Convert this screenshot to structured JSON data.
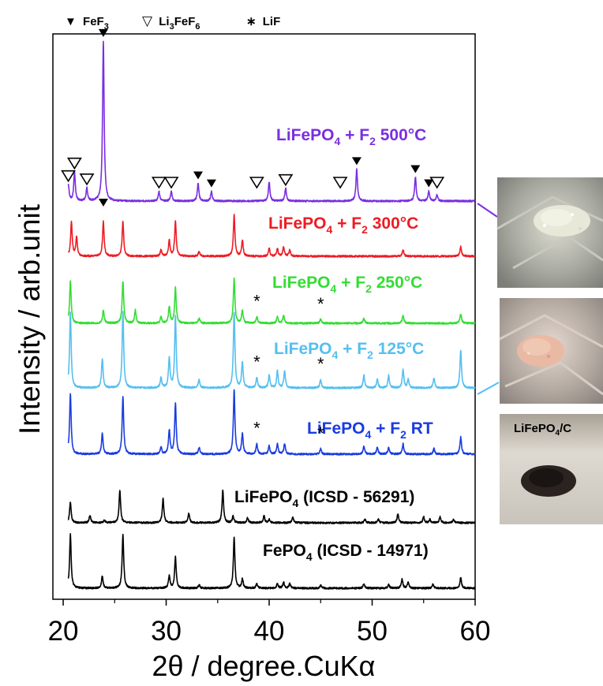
{
  "chart_data": {
    "type": "line",
    "xlabel": "2θ / degree.CuKα",
    "ylabel": "Intensity / arb.unit",
    "xlim": [
      19,
      60
    ],
    "x_ticks": [
      "20",
      "30",
      "40",
      "50",
      "60"
    ],
    "legend": [
      {
        "symbol": "▼",
        "base": "FeF",
        "sub": "3",
        "rest": ""
      },
      {
        "symbol": "▽",
        "base": "Li",
        "sub": "3",
        "rest": "FeF",
        "sub2": "6"
      },
      {
        "symbol": "∗",
        "base": "LiF",
        "sub": "",
        "rest": ""
      }
    ],
    "series": [
      {
        "id": "s500",
        "pre": "LiFePO",
        "sub": "4",
        "post": " + F",
        "sub2": "2",
        "tail": " 500°C",
        "color": "#7a2fe0",
        "peaks": [
          [
            20.5,
            0.1
          ],
          [
            21.1,
            0.18
          ],
          [
            22.3,
            0.08
          ],
          [
            23.9,
            1.0
          ],
          [
            29.3,
            0.06
          ],
          [
            30.5,
            0.06
          ],
          [
            33.1,
            0.11
          ],
          [
            34.4,
            0.06
          ],
          [
            40.0,
            0.12
          ],
          [
            41.6,
            0.08
          ],
          [
            48.5,
            0.2
          ],
          [
            54.2,
            0.15
          ],
          [
            55.5,
            0.06
          ],
          [
            56.3,
            0.04
          ]
        ]
      },
      {
        "id": "s300",
        "pre": "LiFePO",
        "sub": "4",
        "post": " + F",
        "sub2": "2",
        "tail": " 300°C",
        "color": "#ee1c24",
        "peaks": [
          [
            20.8,
            0.55
          ],
          [
            21.3,
            0.3
          ],
          [
            23.9,
            0.55
          ],
          [
            25.8,
            0.55
          ],
          [
            29.5,
            0.1
          ],
          [
            30.3,
            0.25
          ],
          [
            30.9,
            0.55
          ],
          [
            33.2,
            0.08
          ],
          [
            36.6,
            0.65
          ],
          [
            37.4,
            0.25
          ],
          [
            40.0,
            0.12
          ],
          [
            40.8,
            0.12
          ],
          [
            41.4,
            0.15
          ],
          [
            42.0,
            0.1
          ],
          [
            53.0,
            0.1
          ],
          [
            58.6,
            0.15
          ]
        ]
      },
      {
        "id": "s250",
        "pre": "LiFePO",
        "sub": "4",
        "post": " + F",
        "sub2": "2",
        "tail": " 250°C",
        "color": "#33dd33",
        "peaks": [
          [
            20.7,
            0.65
          ],
          [
            23.9,
            0.2
          ],
          [
            25.8,
            0.65
          ],
          [
            27.0,
            0.2
          ],
          [
            29.5,
            0.1
          ],
          [
            30.3,
            0.25
          ],
          [
            30.9,
            0.55
          ],
          [
            33.2,
            0.08
          ],
          [
            36.6,
            0.7
          ],
          [
            37.4,
            0.2
          ],
          [
            38.8,
            0.1
          ],
          [
            40.8,
            0.1
          ],
          [
            41.4,
            0.12
          ],
          [
            45.0,
            0.06
          ],
          [
            49.2,
            0.08
          ],
          [
            53.0,
            0.12
          ],
          [
            58.6,
            0.15
          ]
        ]
      },
      {
        "id": "s125",
        "pre": "LiFePO",
        "sub": "4",
        "post": " + F",
        "sub2": "2",
        "tail": " 125°C",
        "color": "#55bff0",
        "peaks": [
          [
            20.7,
            0.9
          ],
          [
            23.8,
            0.35
          ],
          [
            25.8,
            0.9
          ],
          [
            29.5,
            0.12
          ],
          [
            30.3,
            0.35
          ],
          [
            30.9,
            0.85
          ],
          [
            33.2,
            0.1
          ],
          [
            36.6,
            0.9
          ],
          [
            37.4,
            0.3
          ],
          [
            38.8,
            0.12
          ],
          [
            40.0,
            0.15
          ],
          [
            40.8,
            0.2
          ],
          [
            41.5,
            0.2
          ],
          [
            45.0,
            0.1
          ],
          [
            49.2,
            0.15
          ],
          [
            50.5,
            0.1
          ],
          [
            51.6,
            0.15
          ],
          [
            53.0,
            0.22
          ],
          [
            53.5,
            0.1
          ],
          [
            56.0,
            0.12
          ],
          [
            58.6,
            0.45
          ]
        ]
      },
      {
        "id": "sRT",
        "pre": "LiFePO",
        "sub": "4",
        "post": " + F",
        "sub2": "2",
        "tail": " RT",
        "color": "#1a3ce0",
        "peaks": [
          [
            20.7,
            0.9
          ],
          [
            23.8,
            0.3
          ],
          [
            25.8,
            0.85
          ],
          [
            29.5,
            0.1
          ],
          [
            30.3,
            0.35
          ],
          [
            30.9,
            0.75
          ],
          [
            33.2,
            0.1
          ],
          [
            36.6,
            0.95
          ],
          [
            37.4,
            0.3
          ],
          [
            38.8,
            0.15
          ],
          [
            40.0,
            0.12
          ],
          [
            40.8,
            0.15
          ],
          [
            41.5,
            0.15
          ],
          [
            45.0,
            0.08
          ],
          [
            49.2,
            0.12
          ],
          [
            50.5,
            0.1
          ],
          [
            51.6,
            0.1
          ],
          [
            53.0,
            0.15
          ],
          [
            56.0,
            0.08
          ],
          [
            58.6,
            0.25
          ]
        ]
      },
      {
        "id": "sLFP",
        "pre": "LiFePO",
        "sub": "4",
        "post": " (ICSD - 56291)",
        "sub2": "",
        "tail": "",
        "color": "#000000",
        "peaks": [
          [
            20.7,
            0.5
          ],
          [
            22.6,
            0.18
          ],
          [
            24.0,
            0.06
          ],
          [
            25.5,
            0.78
          ],
          [
            29.7,
            0.58
          ],
          [
            32.2,
            0.22
          ],
          [
            35.5,
            0.78
          ],
          [
            36.5,
            0.16
          ],
          [
            37.9,
            0.12
          ],
          [
            39.5,
            0.16
          ],
          [
            40.0,
            0.08
          ],
          [
            42.3,
            0.12
          ],
          [
            49.3,
            0.08
          ],
          [
            50.6,
            0.08
          ],
          [
            52.5,
            0.22
          ],
          [
            55.0,
            0.14
          ],
          [
            55.6,
            0.08
          ],
          [
            56.6,
            0.14
          ],
          [
            57.9,
            0.08
          ]
        ]
      },
      {
        "id": "sFP",
        "pre": "FePO",
        "sub": "4",
        "post": " (ICSD - 14971)",
        "sub2": "",
        "tail": "",
        "color": "#000000",
        "peaks": [
          [
            20.7,
            0.72
          ],
          [
            23.8,
            0.16
          ],
          [
            25.8,
            0.72
          ],
          [
            30.3,
            0.16
          ],
          [
            30.9,
            0.42
          ],
          [
            33.2,
            0.05
          ],
          [
            36.6,
            0.68
          ],
          [
            37.4,
            0.12
          ],
          [
            38.8,
            0.06
          ],
          [
            40.8,
            0.06
          ],
          [
            41.4,
            0.08
          ],
          [
            42.0,
            0.06
          ],
          [
            45.0,
            0.04
          ],
          [
            49.2,
            0.06
          ],
          [
            51.6,
            0.05
          ],
          [
            52.9,
            0.12
          ],
          [
            53.5,
            0.08
          ],
          [
            55.9,
            0.05
          ],
          [
            58.6,
            0.14
          ]
        ]
      }
    ],
    "annotations": {
      "fef3": [
        [
          23.9,
          "s500"
        ],
        [
          33.1,
          "s500"
        ],
        [
          34.4,
          "s500"
        ],
        [
          48.5,
          "s500"
        ],
        [
          54.2,
          "s500"
        ],
        [
          55.5,
          "s500"
        ],
        [
          23.9,
          "s300"
        ]
      ],
      "li3fef6": [
        [
          20.5,
          "s500"
        ],
        [
          21.1,
          "s500"
        ],
        [
          22.3,
          "s500"
        ],
        [
          29.3,
          "s500"
        ],
        [
          30.5,
          "s500"
        ],
        [
          38.8,
          "s500"
        ],
        [
          41.6,
          "s500"
        ],
        [
          46.9,
          "s500"
        ],
        [
          56.3,
          "s500"
        ]
      ],
      "lif": [
        [
          38.8,
          "s250"
        ],
        [
          45.0,
          "s250"
        ],
        [
          38.8,
          "s125"
        ],
        [
          45.0,
          "s125"
        ],
        [
          38.8,
          "sRT"
        ],
        [
          45.0,
          "sRT"
        ]
      ]
    }
  },
  "photos": {
    "inset_label_pre": "LiFePO",
    "inset_label_sub": "4",
    "inset_label_post": "/C"
  }
}
